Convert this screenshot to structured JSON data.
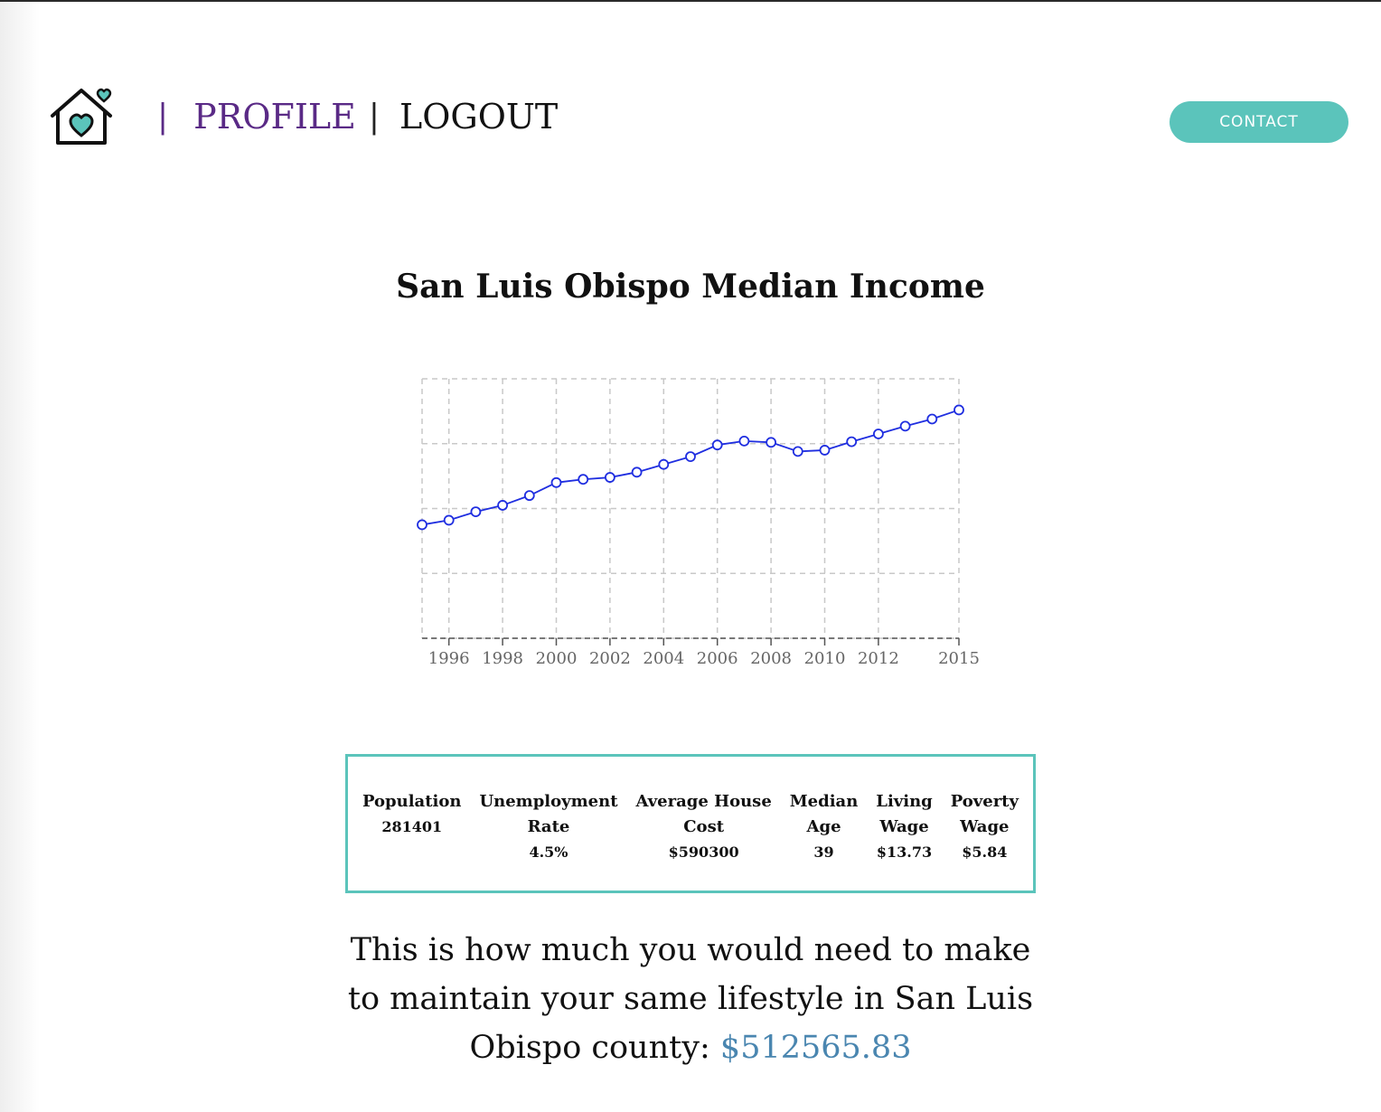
{
  "header": {
    "nav": {
      "separator": "|",
      "profile_label": "PROFILE",
      "logout_label": "LOGOUT"
    },
    "contact_label": "CONTACT",
    "icons": {
      "logo": "house-heart-icon"
    }
  },
  "chart_title": "San Luis Obispo Median Income",
  "chart_data": {
    "type": "line",
    "title": "San Luis Obispo Median Income",
    "xlabel": "",
    "ylabel": "",
    "x": [
      1995,
      1996,
      1997,
      1998,
      1999,
      2000,
      2001,
      2002,
      2003,
      2004,
      2005,
      2006,
      2007,
      2008,
      2009,
      2010,
      2011,
      2012,
      2013,
      2014,
      2015
    ],
    "series": [
      {
        "values": [
          37500,
          38200,
          39500,
          40500,
          42000,
          44000,
          44500,
          44800,
          45600,
          46800,
          48000,
          49800,
          50400,
          50200,
          48800,
          49000,
          50300,
          51500,
          52700,
          53800,
          55200
        ]
      }
    ],
    "xticks": [
      "1996",
      "1998",
      "2000",
      "2002",
      "2004",
      "2006",
      "2008",
      "2010",
      "2012",
      "2015"
    ],
    "xlim": [
      1995,
      2015
    ],
    "ylim": [
      20000,
      60000
    ],
    "grid": true,
    "legend": "none",
    "colors": {
      "line": "#1f2ee0",
      "grid": "#c8c8c8"
    }
  },
  "stats": [
    {
      "label": [
        "Population"
      ],
      "value": "281401"
    },
    {
      "label": [
        "Unemployment",
        "Rate"
      ],
      "value": "4.5%"
    },
    {
      "label": [
        "Average House",
        "Cost"
      ],
      "value": "$590300"
    },
    {
      "label": [
        "Median",
        "Age"
      ],
      "value": "39"
    },
    {
      "label": [
        "Living",
        "Wage"
      ],
      "value": "$13.73"
    },
    {
      "label": [
        "Poverty",
        "Wage"
      ],
      "value": "$5.84"
    }
  ],
  "summary": {
    "text": "This is how much you would need to make to maintain your same lifestyle in San Luis Obispo county:",
    "amount": "$512565.83"
  },
  "colors": {
    "accent": "#5bc4bb",
    "nav_purple": "#5a2a86",
    "amount_blue": "#4a86b0"
  }
}
